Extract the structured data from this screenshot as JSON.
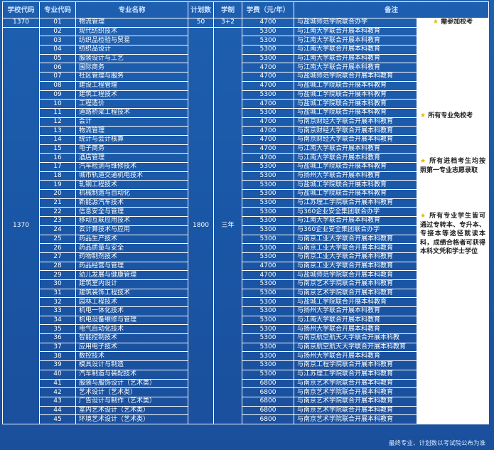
{
  "headers": {
    "school_code": "学校代码",
    "major_code": "专业代码",
    "major_name": "专业名称",
    "plan": "计划数",
    "duration": "学制",
    "fee": "学费（元/年）",
    "remark": "备注"
  },
  "first_row": {
    "school_code": "1370",
    "major_code": "01",
    "major_name": "物流管理",
    "plan": "50",
    "duration": "3+2",
    "fee": "4700",
    "remark": "与盐城师范学院联合办学",
    "note_star": "★",
    "note": "需参加校考"
  },
  "group": {
    "school_code": "1370",
    "plan": "1800",
    "duration": "三年",
    "notes": [
      {
        "star": "★",
        "text": "所有专业免校考"
      },
      {
        "star": "★",
        "text": "所有进档考生均按照第一专业志愿录取"
      },
      {
        "star": "★",
        "text": "所有专业学生皆可通过专转本、专升本、专接本等途径就读本科，成绩合格者可获得本科文凭和学士学位"
      }
    ]
  },
  "rows": [
    {
      "code": "02",
      "name": "现代纺织技术",
      "fee": "5300",
      "remark": "与江南大学联合开展本科教育"
    },
    {
      "code": "03",
      "name": "纺织品检验与贸易",
      "fee": "5300",
      "remark": "与江南大学联合开展本科教育"
    },
    {
      "code": "04",
      "name": "纺织品设计",
      "fee": "5300",
      "remark": "与江南大学联合开展本科教育"
    },
    {
      "code": "05",
      "name": "服装设计与工艺",
      "fee": "5300",
      "remark": "与江南大学联合开展本科教育"
    },
    {
      "code": "06",
      "name": "国际商务",
      "fee": "4700",
      "remark": "与江南大学联合开展本科教育"
    },
    {
      "code": "07",
      "name": "社区管理与服务",
      "fee": "4700",
      "remark": "与盐城师范学院联合开展本科教育"
    },
    {
      "code": "08",
      "name": "建设工程管理",
      "fee": "4700",
      "remark": "与盐城工学院联合开展本科教育"
    },
    {
      "code": "09",
      "name": "建筑工程技术",
      "fee": "5300",
      "remark": "与盐城工学院联合开展本科教育"
    },
    {
      "code": "10",
      "name": "工程造价",
      "fee": "4700",
      "remark": "与盐城工学院联合开展本科教育"
    },
    {
      "code": "11",
      "name": "道路桥梁工程技术",
      "fee": "5300",
      "remark": "与盐城工学院联合开展本科教育"
    },
    {
      "code": "12",
      "name": "会计",
      "fee": "4700",
      "remark": "与南京财经大学联合开展本科教育"
    },
    {
      "code": "13",
      "name": "物流管理",
      "fee": "4700",
      "remark": "与南京财经大学联合开展本科教育"
    },
    {
      "code": "14",
      "name": "统计与会计核算",
      "fee": "4700",
      "remark": "与南京财经大学联合开展本科教育"
    },
    {
      "code": "15",
      "name": "电子商务",
      "fee": "4700",
      "remark": "与江南大学联合开展本科教育"
    },
    {
      "code": "16",
      "name": "酒店管理",
      "fee": "4700",
      "remark": "与江南大学联合开展本科教育"
    },
    {
      "code": "17",
      "name": "汽车检测与维修技术",
      "fee": "5300",
      "remark": "与盐城工学院联合开展本科教育"
    },
    {
      "code": "18",
      "name": "城市轨道交通机电技术",
      "fee": "5300",
      "remark": "与扬州大学联合开展本科教育"
    },
    {
      "code": "19",
      "name": "轧钢工程技术",
      "fee": "5300",
      "remark": "与盐城工学院联合开展本科教育"
    },
    {
      "code": "20",
      "name": "机械制造与自动化",
      "fee": "5300",
      "remark": "与盐城工学院联合开展本科教育"
    },
    {
      "code": "21",
      "name": "新能源汽车技术",
      "fee": "5300",
      "remark": "与江苏理工学院联合开展本科教育"
    },
    {
      "code": "22",
      "name": "信息安全与管理",
      "fee": "5300",
      "remark": "与360企业安全集团联合办学"
    },
    {
      "code": "23",
      "name": "移动互联应用技术",
      "fee": "5300",
      "remark": "与江南大学联合开展本科教育"
    },
    {
      "code": "24",
      "name": "云计算技术与应用",
      "fee": "5300",
      "remark": "与360企业安全集团联合办学"
    },
    {
      "code": "25",
      "name": "药品生产技术",
      "fee": "5300",
      "remark": "与南京工业大学联合开展本科教育"
    },
    {
      "code": "26",
      "name": "药品质量与安全",
      "fee": "5300",
      "remark": "与南京工业大学联合开展本科教育"
    },
    {
      "code": "27",
      "name": "药物制剂技术",
      "fee": "5300",
      "remark": "与南京工业大学联合开展本科教育"
    },
    {
      "code": "28",
      "name": "药品经营与管理",
      "fee": "4700",
      "remark": "与南京工业大学联合开展本科教育"
    },
    {
      "code": "29",
      "name": "幼儿发展与健康管理",
      "fee": "4700",
      "remark": "与盐城师范学院联合开展本科教育"
    },
    {
      "code": "30",
      "name": "建筑室内设计",
      "fee": "5300",
      "remark": "与南京艺术学院联合开展本科教育"
    },
    {
      "code": "31",
      "name": "建筑装饰工程技术",
      "fee": "5300",
      "remark": "与南京艺术学院联合开展本科教育"
    },
    {
      "code": "32",
      "name": "园林工程技术",
      "fee": "5300",
      "remark": "与盐城工学院联合开展本科教育"
    },
    {
      "code": "33",
      "name": "机电一体化技术",
      "fee": "5300",
      "remark": "与扬州大学联合开展本科教育"
    },
    {
      "code": "34",
      "name": "机电设备维修与管理",
      "fee": "5300",
      "remark": "与江南大学联合开展本科教育"
    },
    {
      "code": "35",
      "name": "电气自动化技术",
      "fee": "5300",
      "remark": "与扬州大学联合开展本科教育"
    },
    {
      "code": "36",
      "name": "智能控制技术",
      "fee": "5300",
      "remark": "与南京航空航天大学联合开展本科教"
    },
    {
      "code": "37",
      "name": "应用电子技术",
      "fee": "5300",
      "remark": "与南京航空航天大学联合开展本科教育"
    },
    {
      "code": "38",
      "name": "数控技术",
      "fee": "5300",
      "remark": "与扬州大学联合开展本科教育"
    },
    {
      "code": "39",
      "name": "模具设计与制造",
      "fee": "5300",
      "remark": "与南京工程学院联合开展本科教育"
    },
    {
      "code": "40",
      "name": "汽车制造与装配技术",
      "fee": "5300",
      "remark": "与江苏理工学院联合开展本科教育"
    },
    {
      "code": "41",
      "name": "服装与服饰设计（艺术类）",
      "fee": "6800",
      "remark": "与南京艺术学院联合开展本科教育"
    },
    {
      "code": "42",
      "name": "艺术设计（艺术类）",
      "fee": "6800",
      "remark": "与南京艺术学院联合开展本科教育"
    },
    {
      "code": "43",
      "name": "广告设计与制作（艺术类）",
      "fee": "6800",
      "remark": "与南京艺术学院联合开展本科教育"
    },
    {
      "code": "44",
      "name": "室内艺术设计（艺术类）",
      "fee": "6800",
      "remark": "与南京艺术学院联合开展本科教育"
    },
    {
      "code": "45",
      "name": "环境艺术设计（艺术类）",
      "fee": "6800",
      "remark": "与南京艺术学院联合开展本科教育"
    }
  ],
  "footer": "最终专业、计划数以考试院公布为准"
}
